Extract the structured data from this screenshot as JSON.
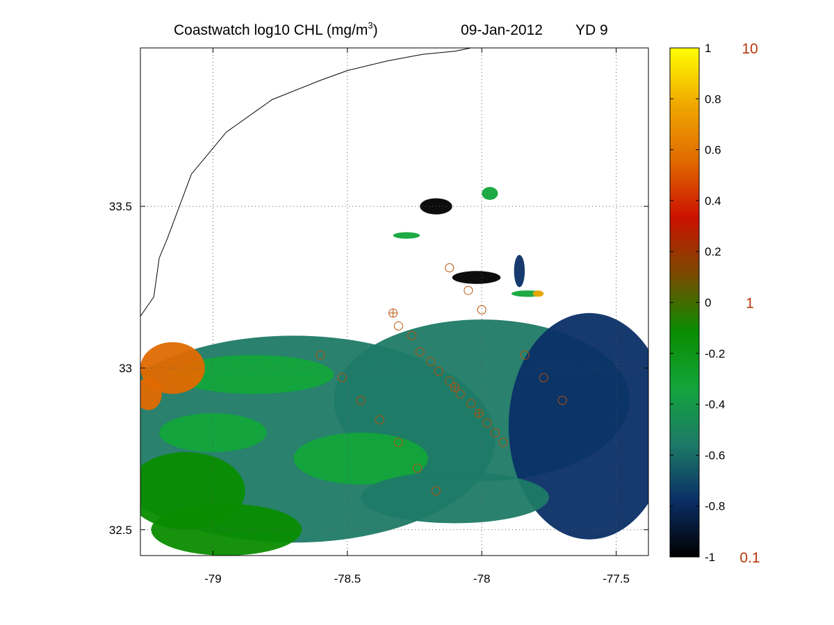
{
  "chart_data": {
    "type": "heatmap",
    "title": {
      "main": "Coastwatch  log10  CHL (mg/m",
      "sup": "3",
      "close": ")",
      "date": "09-Jan-2012",
      "yd": "YD 9"
    },
    "xlim": [
      -79.27,
      -77.38
    ],
    "ylim": [
      32.42,
      33.99
    ],
    "xticks": [
      -79,
      -78.5,
      -78,
      -77.5
    ],
    "xtick_labels": [
      "-79",
      "-78.5",
      "-78",
      "-77.5"
    ],
    "yticks": [
      32.5,
      33,
      33.5
    ],
    "ytick_labels": [
      "32.5",
      "33",
      "33.5"
    ],
    "grid": true,
    "colorbar": {
      "range": [
        -1,
        1
      ],
      "ticks": [
        -1,
        -0.8,
        -0.6,
        -0.4,
        -0.2,
        0,
        0.2,
        0.4,
        0.6,
        0.8,
        1
      ],
      "tick_labels": [
        "-1",
        "-0.8",
        "-0.6",
        "-0.4",
        "-0.2",
        "0",
        "0.2",
        "0.4",
        "0.6",
        "0.8",
        "1"
      ],
      "right_labels": [
        {
          "value": 1,
          "text": "10"
        },
        {
          "value": 0,
          "text": "1"
        },
        {
          "value": -1,
          "text": "0.1"
        }
      ],
      "colors": [
        "#000000",
        "#0a2f66",
        "#1d7a66",
        "#12a53a",
        "#0a8c00",
        "#7a4a00",
        "#cc1100",
        "#e06a00",
        "#f0a800",
        "#ffff00"
      ]
    },
    "coastline": [
      [
        -79.27,
        33.16
      ],
      [
        -79.22,
        33.22
      ],
      [
        -79.2,
        33.34
      ],
      [
        -79.17,
        33.4
      ],
      [
        -79.08,
        33.6
      ],
      [
        -78.95,
        33.73
      ],
      [
        -78.78,
        33.83
      ],
      [
        -78.6,
        33.89
      ],
      [
        -78.5,
        33.92
      ],
      [
        -78.35,
        33.95
      ],
      [
        -78.22,
        33.97
      ],
      [
        -78.1,
        33.98
      ],
      [
        -78.04,
        33.99
      ]
    ],
    "stations": [
      {
        "lon": -78.33,
        "lat": 33.17,
        "mark": "cross"
      },
      {
        "lon": -78.12,
        "lat": 33.31
      },
      {
        "lon": -78.05,
        "lat": 33.24
      },
      {
        "lon": -78.0,
        "lat": 33.18
      },
      {
        "lon": -78.31,
        "lat": 33.13
      },
      {
        "lon": -78.26,
        "lat": 33.1
      },
      {
        "lon": -78.23,
        "lat": 33.05
      },
      {
        "lon": -78.19,
        "lat": 33.02
      },
      {
        "lon": -78.16,
        "lat": 32.99
      },
      {
        "lon": -78.12,
        "lat": 32.96
      },
      {
        "lon": -78.1,
        "lat": 32.94,
        "mark": "cross"
      },
      {
        "lon": -78.08,
        "lat": 32.92
      },
      {
        "lon": -78.04,
        "lat": 32.89
      },
      {
        "lon": -78.01,
        "lat": 32.86,
        "mark": "cross"
      },
      {
        "lon": -77.98,
        "lat": 32.83
      },
      {
        "lon": -77.95,
        "lat": 32.8
      },
      {
        "lon": -77.92,
        "lat": 32.77
      },
      {
        "lon": -77.84,
        "lat": 33.04
      },
      {
        "lon": -77.77,
        "lat": 32.97
      },
      {
        "lon": -77.7,
        "lat": 32.9
      },
      {
        "lon": -78.6,
        "lat": 33.04
      },
      {
        "lon": -78.52,
        "lat": 32.97
      },
      {
        "lon": -78.45,
        "lat": 32.9
      },
      {
        "lon": -78.38,
        "lat": 32.84
      },
      {
        "lon": -78.31,
        "lat": 32.77
      },
      {
        "lon": -78.24,
        "lat": 32.69
      },
      {
        "lon": -78.17,
        "lat": 32.62
      }
    ],
    "regions": [
      {
        "kind": "blob",
        "lon": -78.7,
        "lat": 32.78,
        "rx": 0.75,
        "ry": 0.32,
        "value": -0.62
      },
      {
        "kind": "blob",
        "lon": -78.0,
        "lat": 32.9,
        "rx": 0.55,
        "ry": 0.25,
        "value": -0.66
      },
      {
        "kind": "blob",
        "lon": -77.6,
        "lat": 32.82,
        "rx": 0.3,
        "ry": 0.35,
        "value": -0.72
      },
      {
        "kind": "blob",
        "lon": -78.85,
        "lat": 32.98,
        "rx": 0.3,
        "ry": 0.06,
        "value": -0.38
      },
      {
        "kind": "blob",
        "lon": -79.1,
        "lat": 32.62,
        "rx": 0.22,
        "ry": 0.12,
        "value": -0.22
      },
      {
        "kind": "blob",
        "lon": -78.95,
        "lat": 32.5,
        "rx": 0.28,
        "ry": 0.08,
        "value": -0.18
      },
      {
        "kind": "blob",
        "lon": -78.45,
        "lat": 32.72,
        "rx": 0.25,
        "ry": 0.08,
        "value": -0.4
      },
      {
        "kind": "blob",
        "lon": -79.15,
        "lat": 33.0,
        "rx": 0.12,
        "ry": 0.08,
        "value": 0.5
      },
      {
        "kind": "blob",
        "lon": -79.24,
        "lat": 32.92,
        "rx": 0.05,
        "ry": 0.05,
        "value": 0.45
      },
      {
        "kind": "blob",
        "lon": -78.02,
        "lat": 33.28,
        "rx": 0.09,
        "ry": 0.02,
        "value": -0.92
      },
      {
        "kind": "blob",
        "lon": -78.17,
        "lat": 33.5,
        "rx": 0.06,
        "ry": 0.025,
        "value": -0.95
      },
      {
        "kind": "blob",
        "lon": -77.97,
        "lat": 33.54,
        "rx": 0.03,
        "ry": 0.02,
        "value": -0.35
      },
      {
        "kind": "blob",
        "lon": -78.28,
        "lat": 33.41,
        "rx": 0.05,
        "ry": 0.01,
        "value": -0.3
      },
      {
        "kind": "blob",
        "lon": -77.86,
        "lat": 33.3,
        "rx": 0.02,
        "ry": 0.05,
        "value": -0.75
      },
      {
        "kind": "blob",
        "lon": -77.83,
        "lat": 33.23,
        "rx": 0.06,
        "ry": 0.01,
        "value": -0.25
      },
      {
        "kind": "blob",
        "lon": -77.79,
        "lat": 33.23,
        "rx": 0.02,
        "ry": 0.01,
        "value": 0.7
      },
      {
        "kind": "blob",
        "lon": -78.1,
        "lat": 32.6,
        "rx": 0.35,
        "ry": 0.08,
        "value": -0.52
      },
      {
        "kind": "blob",
        "lon": -79.0,
        "lat": 32.8,
        "rx": 0.2,
        "ry": 0.06,
        "value": -0.3
      }
    ]
  }
}
